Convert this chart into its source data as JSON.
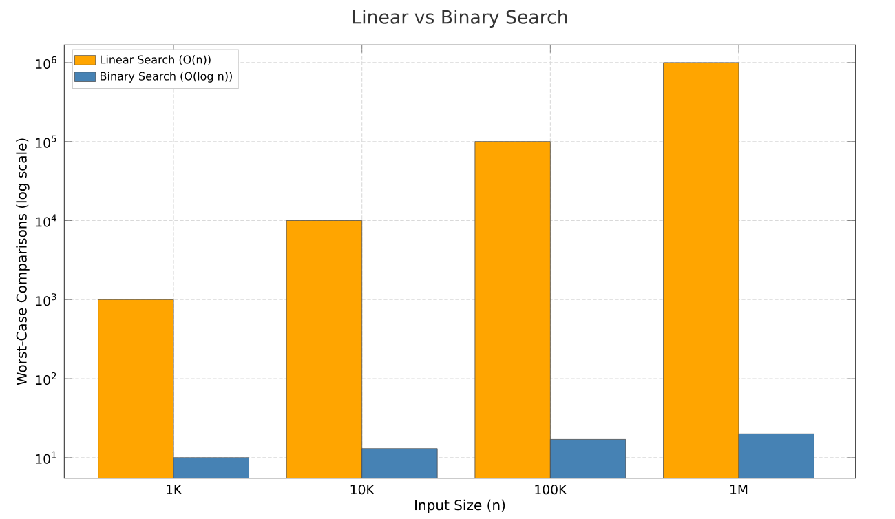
{
  "chart_data": {
    "type": "bar",
    "title": "Linear vs Binary Search",
    "xlabel": "Input Size (n)",
    "ylabel": "Worst-Case Comparisons (log scale)",
    "categories": [
      "1K",
      "10K",
      "100K",
      "1M"
    ],
    "series": [
      {
        "name": "Linear Search (O(n))",
        "color": "#ffa500",
        "values": [
          1000,
          10000,
          100000,
          1000000
        ]
      },
      {
        "name": "Binary Search (O(log n))",
        "color": "#4682b4",
        "values": [
          10,
          13,
          17,
          20
        ]
      }
    ],
    "log": "y",
    "ylim": [
      5.5,
      1670000
    ],
    "yticks": [
      {
        "value": 10,
        "label": "10$^{1}$"
      },
      {
        "value": 100,
        "label": "10$^{2}$"
      },
      {
        "value": 1000,
        "label": "10$^{3}$"
      },
      {
        "value": 10000,
        "label": "10$^{4}$"
      },
      {
        "value": 100000,
        "label": "10$^{5}$"
      },
      {
        "value": 1000000,
        "label": "10$^{6}$"
      }
    ],
    "grid": true,
    "legend": "top left"
  }
}
